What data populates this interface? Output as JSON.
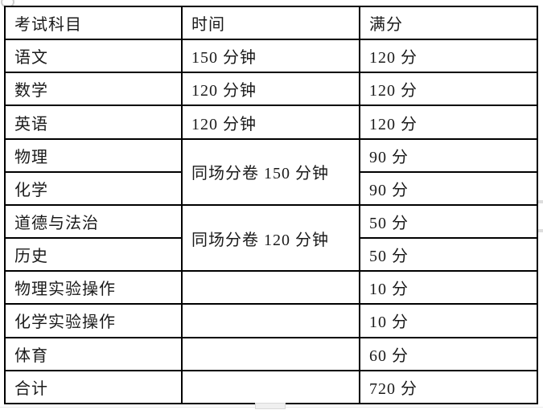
{
  "colors": {
    "background": "#ffffff",
    "border": "#000000",
    "text": "#1a1a1a",
    "artifact_gray": "#d8d8d8"
  },
  "table": {
    "headers": {
      "subject": "考试科目",
      "time": "时间",
      "score": "满分"
    },
    "rows": [
      {
        "subject": "语文",
        "time": "150 分钟",
        "score": "120 分"
      },
      {
        "subject": "数学",
        "time": "120 分钟",
        "score": "120 分"
      },
      {
        "subject": "英语",
        "time": "120 分钟",
        "score": "120 分"
      },
      {
        "subject": "物理",
        "time_merged": "同场分卷 150 分钟",
        "score": "90 分"
      },
      {
        "subject": "化学",
        "score": "90 分"
      },
      {
        "subject": "道德与法治",
        "time_merged": "同场分卷 120 分钟",
        "score": "50 分"
      },
      {
        "subject": "历史",
        "score": "50 分"
      },
      {
        "subject": "物理实验操作",
        "time": "",
        "score": "10 分"
      },
      {
        "subject": "化学实验操作",
        "time": "",
        "score": "10 分"
      },
      {
        "subject": "体育",
        "time": "",
        "score": "60 分"
      },
      {
        "subject": "合计",
        "time": "",
        "score": "720 分"
      }
    ]
  }
}
